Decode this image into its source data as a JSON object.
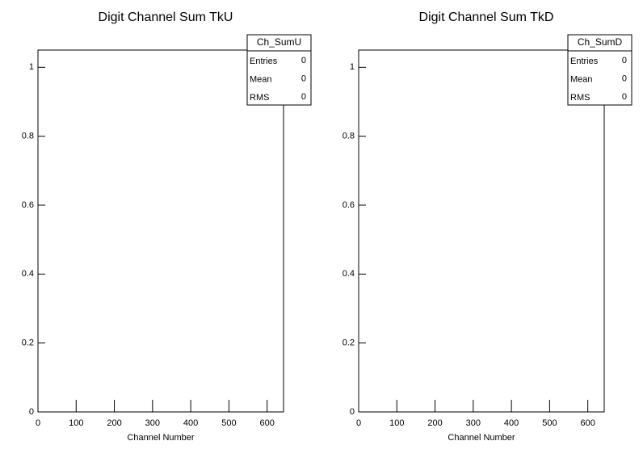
{
  "chart_data": [
    {
      "type": "histogram",
      "title": "Digit Channel Sum TkU",
      "x_label": "Channel Number",
      "xlim": [
        0,
        643
      ],
      "xticks": [
        0,
        100,
        200,
        300,
        400,
        500,
        600
      ],
      "ylim": [
        0,
        1.05
      ],
      "yticks": [
        0,
        0.2,
        0.4,
        0.6,
        0.8,
        1
      ],
      "stats": {
        "name": "Ch_SumU",
        "rows": [
          {
            "label": "Entries",
            "value": 0
          },
          {
            "label": "Mean",
            "value": 0
          },
          {
            "label": "RMS",
            "value": 0
          }
        ]
      }
    },
    {
      "type": "histogram",
      "title": "Digit Channel Sum TkD",
      "x_label": "Channel Number",
      "xlim": [
        0,
        643
      ],
      "xticks": [
        0,
        100,
        200,
        300,
        400,
        500,
        600
      ],
      "ylim": [
        0,
        1.05
      ],
      "yticks": [
        0,
        0.2,
        0.4,
        0.6,
        0.8,
        1
      ],
      "stats": {
        "name": "Ch_SumD",
        "rows": [
          {
            "label": "Entries",
            "value": 0
          },
          {
            "label": "Mean",
            "value": 0
          },
          {
            "label": "RMS",
            "value": 0
          }
        ]
      }
    }
  ]
}
